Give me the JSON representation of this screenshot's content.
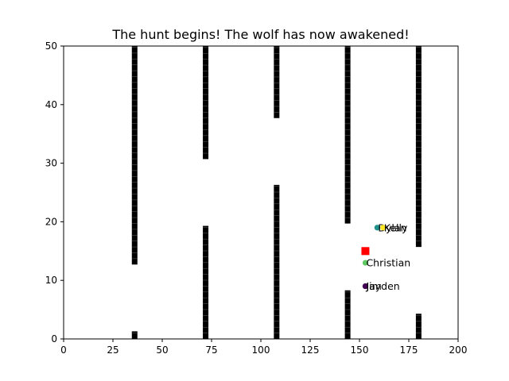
{
  "chart_data": {
    "type": "scatter",
    "title": "The hunt begins! The wolf has now awakened!",
    "xlabel": "",
    "ylabel": "",
    "xlim": [
      0,
      200
    ],
    "ylim": [
      0,
      50
    ],
    "xticks": [
      0,
      25,
      50,
      75,
      100,
      125,
      150,
      175,
      200
    ],
    "yticks": [
      0,
      10,
      20,
      30,
      40,
      50
    ],
    "grid": false,
    "legend": "none",
    "walls": {
      "color": "#000000",
      "segments": [
        {
          "x": 36,
          "y_from": 12.7,
          "y_to": 50
        },
        {
          "x": 36,
          "y_from": 0,
          "y_to": 1.3
        },
        {
          "x": 72,
          "y_from": 30.7,
          "y_to": 50
        },
        {
          "x": 72,
          "y_from": 0,
          "y_to": 19.3
        },
        {
          "x": 108,
          "y_from": 37.7,
          "y_to": 50
        },
        {
          "x": 108,
          "y_from": 0,
          "y_to": 26.3
        },
        {
          "x": 144,
          "y_from": 19.7,
          "y_to": 50
        },
        {
          "x": 144,
          "y_from": 0,
          "y_to": 8.3
        },
        {
          "x": 180,
          "y_from": 15.7,
          "y_to": 50
        },
        {
          "x": 180,
          "y_from": 0,
          "y_to": 4.3
        }
      ]
    },
    "wolf": {
      "x": 153,
      "y": 15,
      "color": "#ff0000",
      "marker": "square"
    },
    "agents": [
      {
        "name": "Dylan",
        "x": 159,
        "y": 19,
        "color": "#21918c"
      },
      {
        "name": "Kelly",
        "x": 162,
        "y": 19,
        "color": "#fde725"
      },
      {
        "name": "Christian",
        "x": 153,
        "y": 13,
        "color": "#5ec962"
      },
      {
        "name": "Jayden",
        "x": 153,
        "y": 9,
        "color": "#3b528b"
      },
      {
        "name": "Jim",
        "x": 153,
        "y": 9,
        "color": "#440154"
      }
    ]
  }
}
